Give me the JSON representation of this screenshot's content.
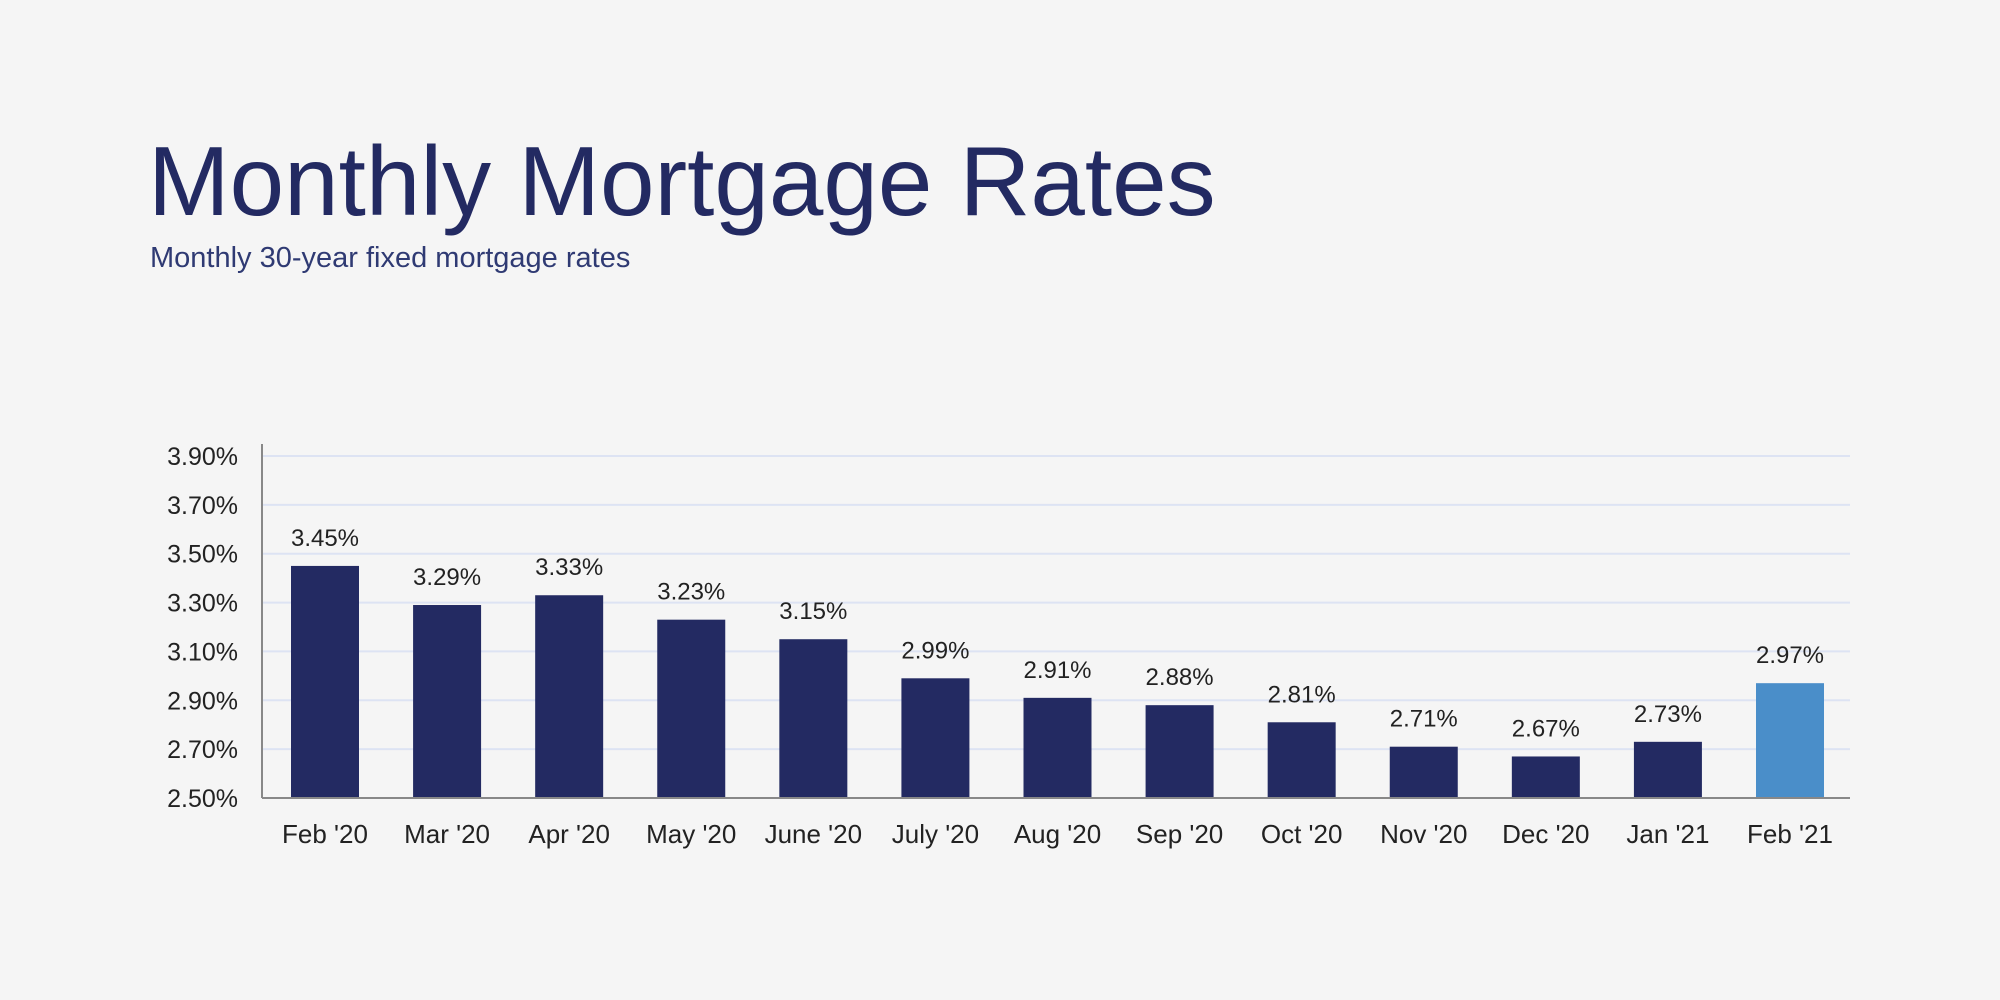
{
  "header": {
    "title": "Monthly Mortgage Rates",
    "subtitle": "Monthly 30-year fixed mortgage rates"
  },
  "colors": {
    "title": "#232a62",
    "bar": "#232a62",
    "highlight_bar": "#4a8ec9",
    "gridline": "#dde3f3",
    "axis": "#888888",
    "background": "#f5f5f5"
  },
  "chart_data": {
    "type": "bar",
    "title": "Monthly Mortgage Rates",
    "subtitle": "Monthly 30-year fixed mortgage rates",
    "xlabel": "",
    "ylabel": "",
    "categories": [
      "Feb '20",
      "Mar '20",
      "Apr '20",
      "May '20",
      "June '20",
      "July '20",
      "Aug '20",
      "Sep '20",
      "Oct '20",
      "Nov '20",
      "Dec '20",
      "Jan '21",
      "Feb '21"
    ],
    "values": [
      3.45,
      3.29,
      3.33,
      3.23,
      3.15,
      2.99,
      2.91,
      2.88,
      2.81,
      2.71,
      2.67,
      2.73,
      2.97
    ],
    "data_labels": [
      "3.45%",
      "3.29%",
      "3.33%",
      "3.23%",
      "3.15%",
      "2.99%",
      "2.91%",
      "2.88%",
      "2.81%",
      "2.71%",
      "2.67%",
      "2.73%",
      "2.97%"
    ],
    "highlighted_category": "Feb '21",
    "ylim": [
      2.5,
      3.9
    ],
    "yticks": [
      2.5,
      2.7,
      2.9,
      3.1,
      3.3,
      3.5,
      3.7,
      3.9
    ],
    "ytick_labels": [
      "2.50%",
      "2.70%",
      "2.90%",
      "3.10%",
      "3.30%",
      "3.50%",
      "3.70%",
      "3.90%"
    ],
    "grid": true,
    "legend": "none"
  }
}
